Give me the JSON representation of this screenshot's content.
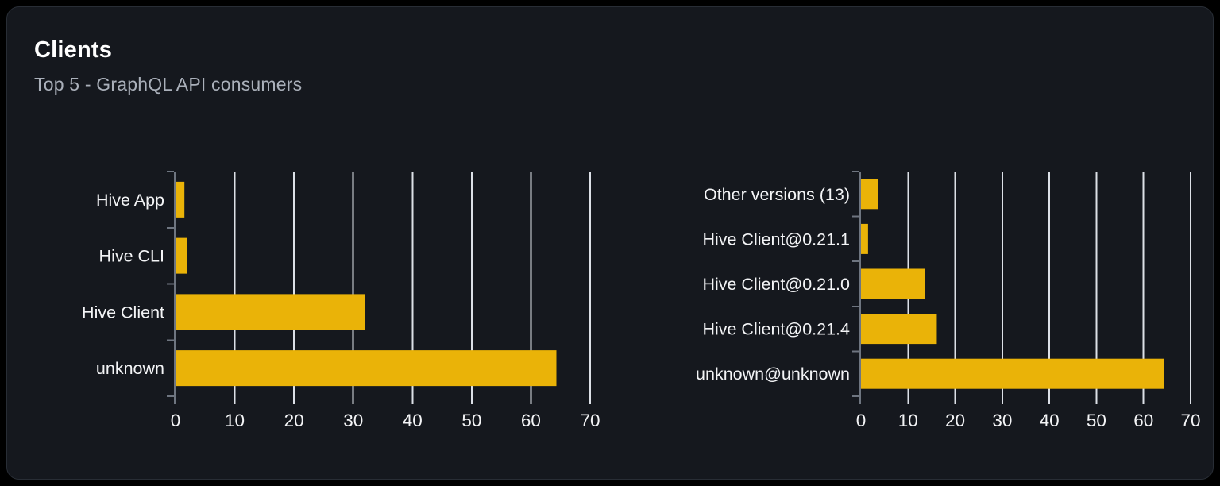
{
  "card": {
    "title": "Clients",
    "subtitle": "Top 5 - GraphQL API consumers"
  },
  "colors": {
    "page_bg": "#000000",
    "card_bg": "#15181e",
    "card_border": "#282d35",
    "bar": "#eab308",
    "gridline": "#dce0e7",
    "axis": "#6e7580",
    "category_label": "#f3f4f6",
    "tick_label": "#f3f4f6",
    "title": "#ffffff",
    "subtitle": "#aab0ba"
  },
  "chart_data": [
    {
      "type": "bar",
      "orientation": "horizontal",
      "name": "clients-by-name",
      "categories": [
        "Hive App",
        "Hive CLI",
        "Hive Client",
        "unknown"
      ],
      "values": [
        1.5,
        2,
        32,
        64.3
      ],
      "xlim": [
        0,
        70
      ],
      "xticks": [
        0,
        10,
        20,
        30,
        40,
        50,
        60,
        70
      ],
      "grid": true,
      "legend": "none",
      "bar_color": "#eab308"
    },
    {
      "type": "bar",
      "orientation": "horizontal",
      "name": "clients-by-version",
      "categories": [
        "Other versions (13)",
        "Hive Client@0.21.1",
        "Hive Client@0.21.0",
        "Hive Client@0.21.4",
        "unknown@unknown"
      ],
      "values": [
        3.6,
        1.5,
        13.5,
        16.1,
        64.3
      ],
      "xlim": [
        0,
        70
      ],
      "xticks": [
        0,
        10,
        20,
        30,
        40,
        50,
        60,
        70
      ],
      "grid": true,
      "legend": "none",
      "bar_color": "#eab308"
    }
  ]
}
